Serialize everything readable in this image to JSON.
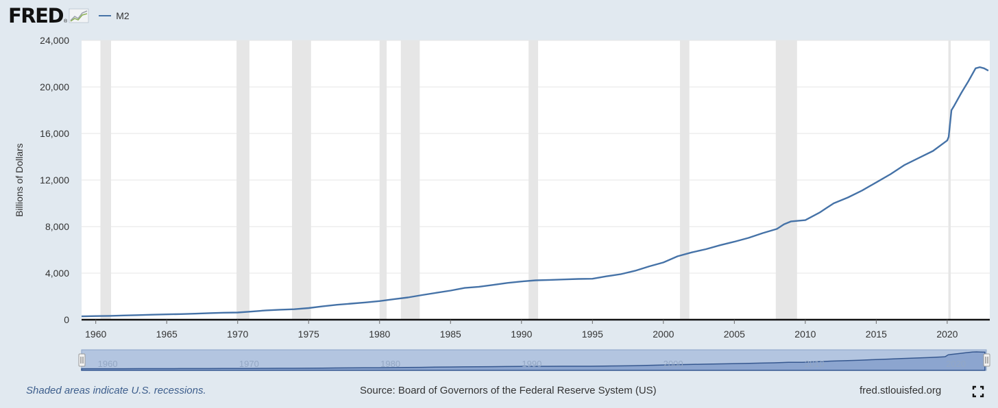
{
  "brand": {
    "logo_text": "FRED",
    "logo_reg": "®",
    "logo_icon": "line-graph-icon"
  },
  "chart_data": {
    "type": "line",
    "title": "",
    "xlabel": "",
    "ylabel": "Billions of Dollars",
    "xlim": [
      1959.0,
      2023.0
    ],
    "ylim": [
      0,
      24000
    ],
    "yticks": [
      0,
      4000,
      8000,
      12000,
      16000,
      20000,
      24000
    ],
    "ytick_labels": [
      "0",
      "4,000",
      "8,000",
      "12,000",
      "16,000",
      "20,000",
      "24,000"
    ],
    "xticks": [
      1960,
      1965,
      1970,
      1975,
      1980,
      1985,
      1990,
      1995,
      2000,
      2005,
      2010,
      2015,
      2020
    ],
    "xtick_labels": [
      "1960",
      "1965",
      "1970",
      "1975",
      "1980",
      "1985",
      "1990",
      "1995",
      "2000",
      "2005",
      "2010",
      "2015",
      "2020"
    ],
    "grid": true,
    "legend_position": "top-left",
    "series": [
      {
        "name": "M2",
        "color": "#4572a7",
        "x": [
          1959.0,
          1960.0,
          1961.0,
          1962.0,
          1963.0,
          1964.0,
          1965.0,
          1966.0,
          1967.0,
          1968.0,
          1969.0,
          1970.0,
          1971.0,
          1972.0,
          1973.0,
          1974.0,
          1975.0,
          1976.0,
          1977.0,
          1978.0,
          1979.0,
          1980.0,
          1981.0,
          1982.0,
          1983.0,
          1984.0,
          1985.0,
          1986.0,
          1987.0,
          1988.0,
          1989.0,
          1990.0,
          1991.0,
          1992.0,
          1993.0,
          1994.0,
          1995.0,
          1996.0,
          1997.0,
          1998.0,
          1999.0,
          2000.0,
          2001.0,
          2002.0,
          2003.0,
          2004.0,
          2005.0,
          2006.0,
          2007.0,
          2008.0,
          2008.5,
          2009.0,
          2010.0,
          2011.0,
          2011.5,
          2012.0,
          2013.0,
          2014.0,
          2015.0,
          2016.0,
          2017.0,
          2018.0,
          2019.0,
          2020.0,
          2020.1,
          2020.3,
          2020.5,
          2021.0,
          2021.5,
          2022.0,
          2022.3,
          2022.6,
          2022.9
        ],
        "values": [
          290,
          310,
          330,
          365,
          395,
          430,
          460,
          480,
          520,
          565,
          600,
          620,
          700,
          800,
          860,
          900,
          1000,
          1150,
          1280,
          1380,
          1480,
          1600,
          1760,
          1910,
          2120,
          2310,
          2500,
          2730,
          2830,
          2990,
          3160,
          3280,
          3380,
          3420,
          3460,
          3500,
          3520,
          3730,
          3910,
          4200,
          4580,
          4920,
          5450,
          5780,
          6060,
          6400,
          6700,
          7030,
          7440,
          7800,
          8200,
          8450,
          8550,
          9200,
          9600,
          10000,
          10500,
          11100,
          11800,
          12500,
          13300,
          13900,
          14500,
          15400,
          15700,
          18000,
          18400,
          19500,
          20500,
          21600,
          21700,
          21600,
          21400
        ]
      }
    ],
    "recessions": [
      [
        1960.33,
        1961.08
      ],
      [
        1969.92,
        1970.83
      ],
      [
        1973.83,
        1975.17
      ],
      [
        1980.0,
        1980.5
      ],
      [
        1981.5,
        1982.83
      ],
      [
        1990.5,
        1991.17
      ],
      [
        2001.17,
        2001.83
      ],
      [
        2007.92,
        2009.42
      ],
      [
        2020.08,
        2020.25
      ]
    ],
    "navigator_ticks": [
      "1960",
      "1970",
      "1980",
      "1990",
      "2000",
      "2010",
      "2020"
    ]
  },
  "footer": {
    "note": "Shaded areas indicate U.S. recessions.",
    "source": "Source: Board of Governors of the Federal Reserve System (US)",
    "site": "fred.stlouisfed.org"
  },
  "icons": {
    "fullscreen": "fullscreen-icon",
    "handle": "drag-handle-icon"
  }
}
